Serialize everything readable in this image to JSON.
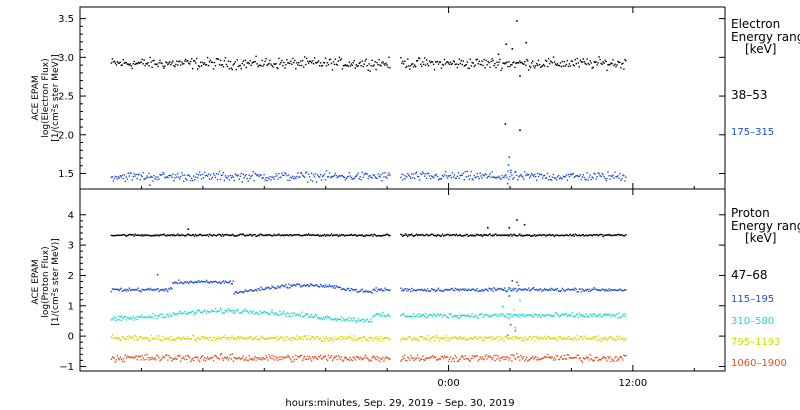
{
  "chart_data": [
    {
      "type": "scatter",
      "ylabel": [
        "ACE EPAM",
        "log(Electron Flux)",
        "[1/(cm²s ster MeV)]"
      ],
      "ylim": [
        1.3,
        3.65
      ],
      "yticks": [
        1.5,
        2.0,
        2.5,
        3.0,
        3.5
      ],
      "ytick_labels": [
        "1.5",
        "2.0",
        "2.5",
        "3.0",
        "3.5"
      ],
      "legend": {
        "title_lines": [
          "Electron",
          "Energy ranges",
          "[keV]"
        ],
        "entries": [
          {
            "label": "38–53",
            "color": "#000000"
          },
          {
            "label": "175–315",
            "color": "#1f4fcf"
          }
        ]
      },
      "series": [
        {
          "label": "38–53",
          "color": "#000000",
          "base": 2.93,
          "noise": 0.06,
          "spikes": [
            [
              4.4,
              3.48
            ],
            [
              3.7,
              3.18
            ],
            [
              4.1,
              3.12
            ],
            [
              5.0,
              3.2
            ],
            [
              4.6,
              2.77
            ],
            [
              3.2,
              3.05
            ]
          ]
        },
        {
          "label": "175–315",
          "color": "#1f4fcf",
          "base": 1.47,
          "noise": 0.05,
          "spikes": [
            [
              3.9,
              1.72
            ],
            [
              3.85,
              1.62
            ],
            [
              4.0,
              1.55
            ],
            [
              3.8,
              1.38
            ],
            [
              -19.5,
              1.36
            ]
          ]
        }
      ],
      "extra_points": [
        {
          "x": 3.65,
          "y": 2.15,
          "color": "#000000"
        },
        {
          "x": 4.6,
          "y": 2.07,
          "color": "#000000"
        }
      ]
    },
    {
      "type": "scatter",
      "ylabel": [
        "ACE EPAM",
        "log(Proton Flux)",
        "[1/(cm²s ster MeV)]"
      ],
      "ylim": [
        -1.15,
        4.85
      ],
      "yticks": [
        -1,
        0,
        1,
        2,
        3,
        4
      ],
      "ytick_labels": [
        "−1",
        "0",
        "1",
        "2",
        "3",
        "4"
      ],
      "legend": {
        "title_lines": [
          "Proton",
          "Energy ranges",
          "[keV]"
        ],
        "entries": [
          {
            "label": "47–68",
            "color": "#000000"
          },
          {
            "label": "115–195",
            "color": "#1f4fcf"
          },
          {
            "label": "310–580",
            "color": "#22d4d4"
          },
          {
            "label": "795–1193",
            "color": "#d6d600"
          },
          {
            "label": "1060–1900",
            "color": "#e0501a"
          }
        ]
      },
      "series": [
        {
          "label": "47–68",
          "color": "#000000",
          "base": 3.35,
          "noise": 0.03,
          "spikes": [
            [
              4.4,
              3.85
            ],
            [
              3.9,
              3.6
            ],
            [
              4.9,
              3.7
            ],
            [
              -17.0,
              3.55
            ],
            [
              2.5,
              3.6
            ]
          ]
        },
        {
          "label": "115–195",
          "color": "#1f4fcf",
          "base": 1.55,
          "noise": 0.05,
          "spikes": [
            [
              -19.0,
              2.05
            ],
            [
              4.1,
              1.85
            ],
            [
              4.4,
              1.8
            ],
            [
              3.9,
              1.35
            ]
          ]
        },
        {
          "label": "310–580",
          "color": "#22d4d4",
          "base": 0.7,
          "noise": 0.07,
          "spikes": [
            [
              4.0,
              1.6
            ],
            [
              3.5,
              1.0
            ],
            [
              4.3,
              0.3
            ],
            [
              4.6,
              1.2
            ]
          ]
        },
        {
          "label": "795–1193",
          "color": "#d6d600",
          "base": -0.05,
          "noise": 0.07,
          "spikes": [
            [
              4.2,
              0.9
            ],
            [
              3.9,
              0.6
            ]
          ]
        },
        {
          "label": "1060–1900",
          "color": "#e0501a",
          "base": -0.7,
          "noise": 0.1,
          "spikes": [
            [
              4.3,
              0.2
            ],
            [
              3.8,
              0.05
            ],
            [
              4.0,
              0.4
            ],
            [
              4.5,
              1.7
            ]
          ]
        }
      ]
    }
  ],
  "x_axis": {
    "xlim": [
      -24,
      18
    ],
    "data_range": [
      -22,
      11.5
    ],
    "ticks": [
      {
        "x": 0,
        "label": "0:00"
      },
      {
        "x": 12,
        "label": "12:00"
      }
    ],
    "minor_ticks": [
      -20,
      -16,
      -12,
      -8,
      -4,
      4,
      8,
      16
    ],
    "label": "hours:minutes, Sep. 29, 2019 – Sep. 30, 2019"
  }
}
